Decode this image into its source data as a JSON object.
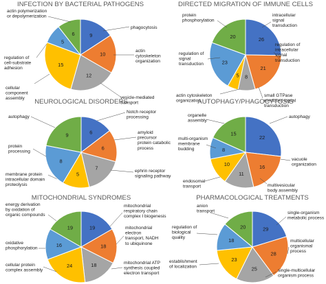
{
  "colors": {
    "blue": "#4472C4",
    "orange": "#ED7D31",
    "gray": "#A5A5A5",
    "yellow": "#FFC000",
    "lightblue": "#5B9BD5",
    "green": "#70AD47"
  },
  "chart_data": [
    {
      "type": "pie",
      "title": "INFECTION BY BACTERIAL PATHOGENS",
      "slices": [
        {
          "label": "phagocytosis",
          "value": 9,
          "color": "blue"
        },
        {
          "label": "actin cytoskeleton organization",
          "value": 10,
          "color": "orange"
        },
        {
          "label": "vesicle-mediated transport",
          "value": 12,
          "color": "gray"
        },
        {
          "label": "cellular component assembly",
          "value": 15,
          "color": "yellow"
        },
        {
          "label": "regulation of cell-substrate adhesion",
          "value": 5,
          "color": "lightblue"
        },
        {
          "label": "actin polymerization or depolymerization",
          "value": 6,
          "color": "green"
        }
      ]
    },
    {
      "type": "pie",
      "title": "DIRECTED MIGRATION OF IMMUNE CELLS",
      "slices": [
        {
          "label": "intracellular signal transduction",
          "value": 26,
          "color": "blue"
        },
        {
          "label": "regulation of intracellular signal transduction",
          "value": 21,
          "color": "orange"
        },
        {
          "label": "small GTPase mediated signal transduction",
          "value": 8,
          "color": "gray"
        },
        {
          "label": "actin cytoskeleton organization",
          "value": 5,
          "color": "yellow"
        },
        {
          "label": "regulation of signal transduction",
          "value": 23,
          "color": "lightblue"
        },
        {
          "label": "protein phosphorylation",
          "value": 20,
          "color": "green"
        }
      ]
    },
    {
      "type": "pie",
      "title": "NEUROLOGICAL DISORDERS",
      "slices": [
        {
          "label": "Notch receptor processing",
          "value": 6,
          "color": "blue"
        },
        {
          "label": "amyloid precursor protein catabolic process",
          "value": 6,
          "color": "orange"
        },
        {
          "label": "ephrin receptor signaling pathway",
          "value": 7,
          "color": "gray"
        },
        {
          "label": "membrane protein intracellular domain proteolysis",
          "value": 5,
          "color": "yellow"
        },
        {
          "label": "protein processing",
          "value": 8,
          "color": "lightblue"
        },
        {
          "label": "autophagy",
          "value": 9,
          "color": "green"
        }
      ]
    },
    {
      "type": "pie",
      "title": "AUTOPHAGY/PHAGOCYTOSIS",
      "slices": [
        {
          "label": "autophagy",
          "value": 22,
          "color": "blue"
        },
        {
          "label": "vacuole organization",
          "value": 16,
          "color": "orange"
        },
        {
          "label": "multivesicular body assembly",
          "value": 11,
          "color": "gray"
        },
        {
          "label": "endosomal transport",
          "value": 10,
          "color": "yellow"
        },
        {
          "label": "multi-organism membrane budding",
          "value": 8,
          "color": "lightblue"
        },
        {
          "label": "organelle assembly",
          "value": 15,
          "color": "green"
        }
      ]
    },
    {
      "type": "pie",
      "title": "MITOCHONDRIAL SYNDROMES",
      "slices": [
        {
          "label": "mitochondrial respiratory chain complex I biogenesis",
          "value": 19,
          "color": "blue"
        },
        {
          "label": "mitochondrial electron transport, NADH to ubiquinone",
          "value": 18,
          "color": "orange"
        },
        {
          "label": "mitochondrial ATP synthesis coupled electron transport",
          "value": 18,
          "color": "gray"
        },
        {
          "label": "cellular protein complex assembly",
          "value": 24,
          "color": "yellow"
        },
        {
          "label": "oxidative phosphorylation",
          "value": 16,
          "color": "lightblue"
        },
        {
          "label": "energy derivation by oxidation of organic compounds",
          "value": 19,
          "color": "green"
        }
      ]
    },
    {
      "type": "pie",
      "title": "PHARMACOLOGICAL TREATMENTS",
      "slices": [
        {
          "label": "single-organism metabolic process",
          "value": 29,
          "color": "blue"
        },
        {
          "label": "multicellular organismal process",
          "value": 28,
          "color": "orange"
        },
        {
          "label": "single-multicellular organism process",
          "value": 25,
          "color": "gray"
        },
        {
          "label": "establishment of localization",
          "value": 23,
          "color": "yellow"
        },
        {
          "label": "regulation of biological quality",
          "value": 18,
          "color": "lightblue"
        },
        {
          "label": "anion transport",
          "value": 20,
          "color": "green"
        }
      ]
    }
  ]
}
